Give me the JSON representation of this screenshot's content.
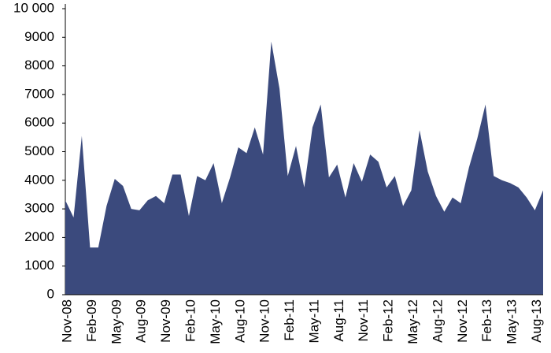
{
  "chart_data": {
    "type": "area",
    "color": "#3b4a7d",
    "categories": [
      "Nov-08",
      null,
      null,
      "Feb-09",
      null,
      null,
      "May-09",
      null,
      null,
      "Aug-09",
      null,
      null,
      "Nov-09",
      null,
      null,
      "Feb-10",
      null,
      null,
      "May-10",
      null,
      null,
      "Aug-10",
      null,
      null,
      "Nov-10",
      null,
      null,
      "Feb-11",
      null,
      null,
      "May-11",
      null,
      null,
      "Aug-11",
      null,
      null,
      "Nov-11",
      null,
      null,
      "Feb-12",
      null,
      null,
      "May-12",
      null,
      null,
      "Aug-12",
      null,
      null,
      "Nov-12",
      null,
      null,
      "Feb-13",
      null,
      null,
      "May-13",
      null,
      null,
      "Aug-13",
      null
    ],
    "values": [
      3300,
      2700,
      5550,
      1650,
      1650,
      3100,
      4050,
      3800,
      3000,
      2950,
      3300,
      3450,
      3200,
      4200,
      4200,
      2750,
      4150,
      4000,
      4600,
      3200,
      4100,
      5150,
      4950,
      5850,
      4900,
      8850,
      7200,
      4150,
      5200,
      3750,
      5850,
      6650,
      4100,
      4550,
      3400,
      4600,
      3950,
      4900,
      4650,
      3750,
      4150,
      3100,
      3650,
      5750,
      4300,
      3450,
      2900,
      3400,
      3200,
      4450,
      5450,
      6650,
      4150,
      4000,
      3900,
      3750,
      3400,
      2950,
      3650
    ],
    "ylim": [
      0,
      10000
    ],
    "yticks": [
      0,
      1000,
      2000,
      3000,
      4000,
      5000,
      6000,
      7000,
      8000,
      9000,
      {
        "value": 10000,
        "label": "10 000"
      }
    ],
    "grid": false
  }
}
